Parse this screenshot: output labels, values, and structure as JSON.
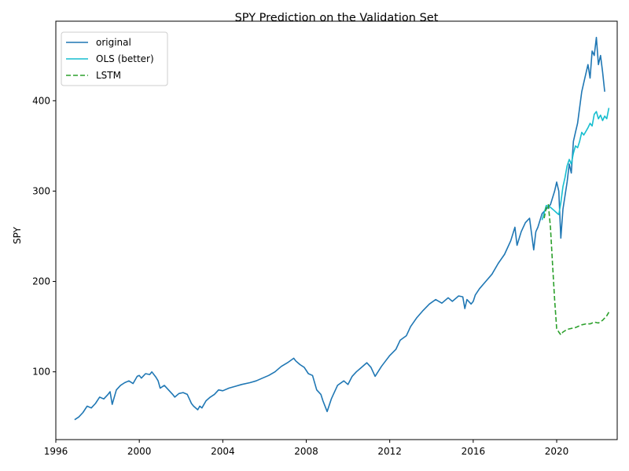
{
  "chart_data": {
    "type": "line",
    "title": "SPY Prediction on the Validation Set",
    "xlabel": "",
    "ylabel": "SPY",
    "xlim": [
      1996.0,
      2022.9
    ],
    "ylim": [
      25,
      488
    ],
    "xticks": [
      1996,
      2000,
      2004,
      2008,
      2012,
      2016,
      2020
    ],
    "xtick_labels": [
      "1996",
      "2000",
      "2004",
      "2008",
      "2012",
      "2016",
      "2020"
    ],
    "yticks": [
      100,
      200,
      300,
      400
    ],
    "ytick_labels": [
      "100",
      "200",
      "300",
      "400"
    ],
    "grid": false,
    "legend_position": "top-left",
    "series": [
      {
        "name": "original",
        "color": "#1f77b4",
        "dash": "solid",
        "x": [
          1996.9,
          1997.1,
          1997.3,
          1997.5,
          1997.7,
          1997.9,
          1998.1,
          1998.3,
          1998.5,
          1998.6,
          1998.7,
          1998.9,
          1999.1,
          1999.3,
          1999.5,
          1999.7,
          1999.9,
          2000.0,
          2000.1,
          2000.3,
          2000.5,
          2000.6,
          2000.8,
          2000.9,
          2001.0,
          2001.2,
          2001.4,
          2001.6,
          2001.7,
          2001.9,
          2002.1,
          2002.3,
          2002.5,
          2002.6,
          2002.8,
          2002.9,
          2003.0,
          2003.2,
          2003.4,
          2003.6,
          2003.8,
          2004.0,
          2004.3,
          2004.6,
          2004.9,
          2005.3,
          2005.6,
          2005.9,
          2006.2,
          2006.5,
          2006.8,
          2007.1,
          2007.4,
          2007.5,
          2007.7,
          2007.9,
          2008.1,
          2008.3,
          2008.5,
          2008.7,
          2008.8,
          2008.9,
          2009.0,
          2009.2,
          2009.3,
          2009.5,
          2009.8,
          2010.0,
          2010.2,
          2010.4,
          2010.6,
          2010.9,
          2011.1,
          2011.3,
          2011.6,
          2011.8,
          2012.0,
          2012.3,
          2012.5,
          2012.8,
          2013.0,
          2013.3,
          2013.6,
          2013.9,
          2014.2,
          2014.5,
          2014.8,
          2015.0,
          2015.3,
          2015.5,
          2015.6,
          2015.7,
          2015.9,
          2016.0,
          2016.1,
          2016.3,
          2016.6,
          2016.9,
          2017.2,
          2017.5,
          2017.8,
          2018.0,
          2018.1,
          2018.3,
          2018.5,
          2018.7,
          2018.9,
          2019.0,
          2019.1,
          2019.3,
          2019.5,
          2019.7,
          2019.9,
          2020.0,
          2020.1,
          2020.2,
          2020.3,
          2020.5,
          2020.6,
          2020.7,
          2020.8,
          2020.9,
          2021.0,
          2021.2,
          2021.3,
          2021.5,
          2021.6,
          2021.7,
          2021.8,
          2021.9,
          2022.0,
          2022.1,
          2022.2,
          2022.3
        ],
        "y": [
          47,
          50,
          55,
          62,
          60,
          65,
          72,
          70,
          75,
          78,
          64,
          80,
          85,
          88,
          90,
          87,
          95,
          96,
          93,
          98,
          97,
          100,
          94,
          90,
          82,
          85,
          80,
          75,
          72,
          76,
          77,
          75,
          65,
          62,
          58,
          62,
          60,
          68,
          72,
          75,
          80,
          79,
          82,
          84,
          86,
          88,
          90,
          93,
          96,
          100,
          106,
          110,
          115,
          112,
          108,
          105,
          98,
          96,
          80,
          75,
          68,
          62,
          56,
          70,
          75,
          85,
          90,
          86,
          95,
          100,
          104,
          110,
          105,
          95,
          106,
          112,
          118,
          125,
          135,
          140,
          150,
          160,
          168,
          175,
          180,
          176,
          182,
          178,
          184,
          183,
          170,
          180,
          175,
          178,
          185,
          192,
          200,
          208,
          220,
          230,
          245,
          260,
          240,
          255,
          265,
          270,
          235,
          255,
          260,
          275,
          280,
          285,
          300,
          310,
          300,
          248,
          280,
          310,
          330,
          320,
          355,
          365,
          375,
          410,
          420,
          440,
          425,
          455,
          450,
          470,
          440,
          450,
          432,
          410
        ]
      },
      {
        "name": "OLS (better)",
        "color": "#17becf",
        "dash": "solid",
        "x": [
          2019.3,
          2019.5,
          2019.7,
          2019.9,
          2020.0,
          2020.1,
          2020.2,
          2020.3,
          2020.4,
          2020.5,
          2020.6,
          2020.7,
          2020.8,
          2020.9,
          2021.0,
          2021.1,
          2021.2,
          2021.3,
          2021.5,
          2021.6,
          2021.7,
          2021.8,
          2021.9,
          2022.0,
          2022.1,
          2022.2,
          2022.3,
          2022.4,
          2022.5
        ],
        "y": [
          268,
          284,
          282,
          278,
          276,
          274,
          287,
          305,
          315,
          328,
          335,
          330,
          342,
          350,
          348,
          355,
          365,
          362,
          370,
          375,
          372,
          385,
          388,
          380,
          384,
          378,
          383,
          380,
          392
        ]
      },
      {
        "name": "LSTM",
        "color": "#2ca02c",
        "dash": "dashed",
        "x": [
          2019.4,
          2019.5,
          2019.6,
          2019.7,
          2019.8,
          2019.9,
          2020.0,
          2020.1,
          2020.2,
          2020.3,
          2020.5,
          2020.7,
          2020.9,
          2021.0,
          2021.2,
          2021.4,
          2021.6,
          2021.8,
          2022.0,
          2022.2,
          2022.4,
          2022.5
        ],
        "y": [
          270,
          282,
          285,
          260,
          220,
          180,
          148,
          144,
          141,
          144,
          147,
          148,
          149,
          150,
          152,
          153,
          153,
          155,
          154,
          157,
          162,
          166
        ]
      }
    ]
  }
}
